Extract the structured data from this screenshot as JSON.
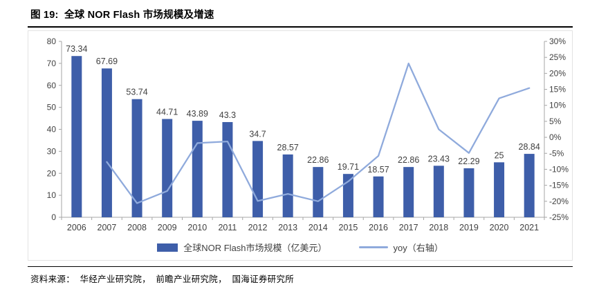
{
  "page": {
    "title": "图 19:  全球 NOR Flash 市场规模及增速",
    "source": "资料来源：  华经产业研究院，  前瞻产业研究院，  国海证券研究所"
  },
  "colors": {
    "bar": "#3E5EA9",
    "line": "#8FAADC",
    "label_text": "#404040",
    "axis_line": "#A6A6A6"
  },
  "chart_data": {
    "type": "bar",
    "subtype": "bar+line combo, dual axis",
    "title": "全球 NOR Flash 市场规模及增速",
    "categories": [
      "2006",
      "2007",
      "2008",
      "2009",
      "2010",
      "2011",
      "2012",
      "2013",
      "2014",
      "2015",
      "2016",
      "2017",
      "2018",
      "2019",
      "2020",
      "2021"
    ],
    "series": [
      {
        "name": "全球NOR Flash市场规模（亿美元）",
        "type": "bar",
        "axis": "left",
        "color": "#3E5EA9",
        "values": [
          73.34,
          67.69,
          53.74,
          44.71,
          43.89,
          43.3,
          34.7,
          28.57,
          22.86,
          19.71,
          18.57,
          22.86,
          23.43,
          22.29,
          25,
          28.84
        ]
      },
      {
        "name": "yoy（右轴）",
        "type": "line",
        "axis": "right",
        "color": "#8FAADC",
        "values": [
          null,
          -7.7,
          -20.6,
          -16.8,
          -1.8,
          -1.3,
          -19.9,
          -17.7,
          -20.0,
          -13.8,
          -5.8,
          23.1,
          2.5,
          -4.9,
          12.2,
          15.4
        ]
      }
    ],
    "left_axis": {
      "min": 0,
      "max": 80,
      "step": 10
    },
    "right_axis": {
      "min": -25,
      "max": 30,
      "step": 5,
      "suffix": "%"
    },
    "bar_value_labels": true,
    "grid": false,
    "legend_position": "bottom"
  }
}
